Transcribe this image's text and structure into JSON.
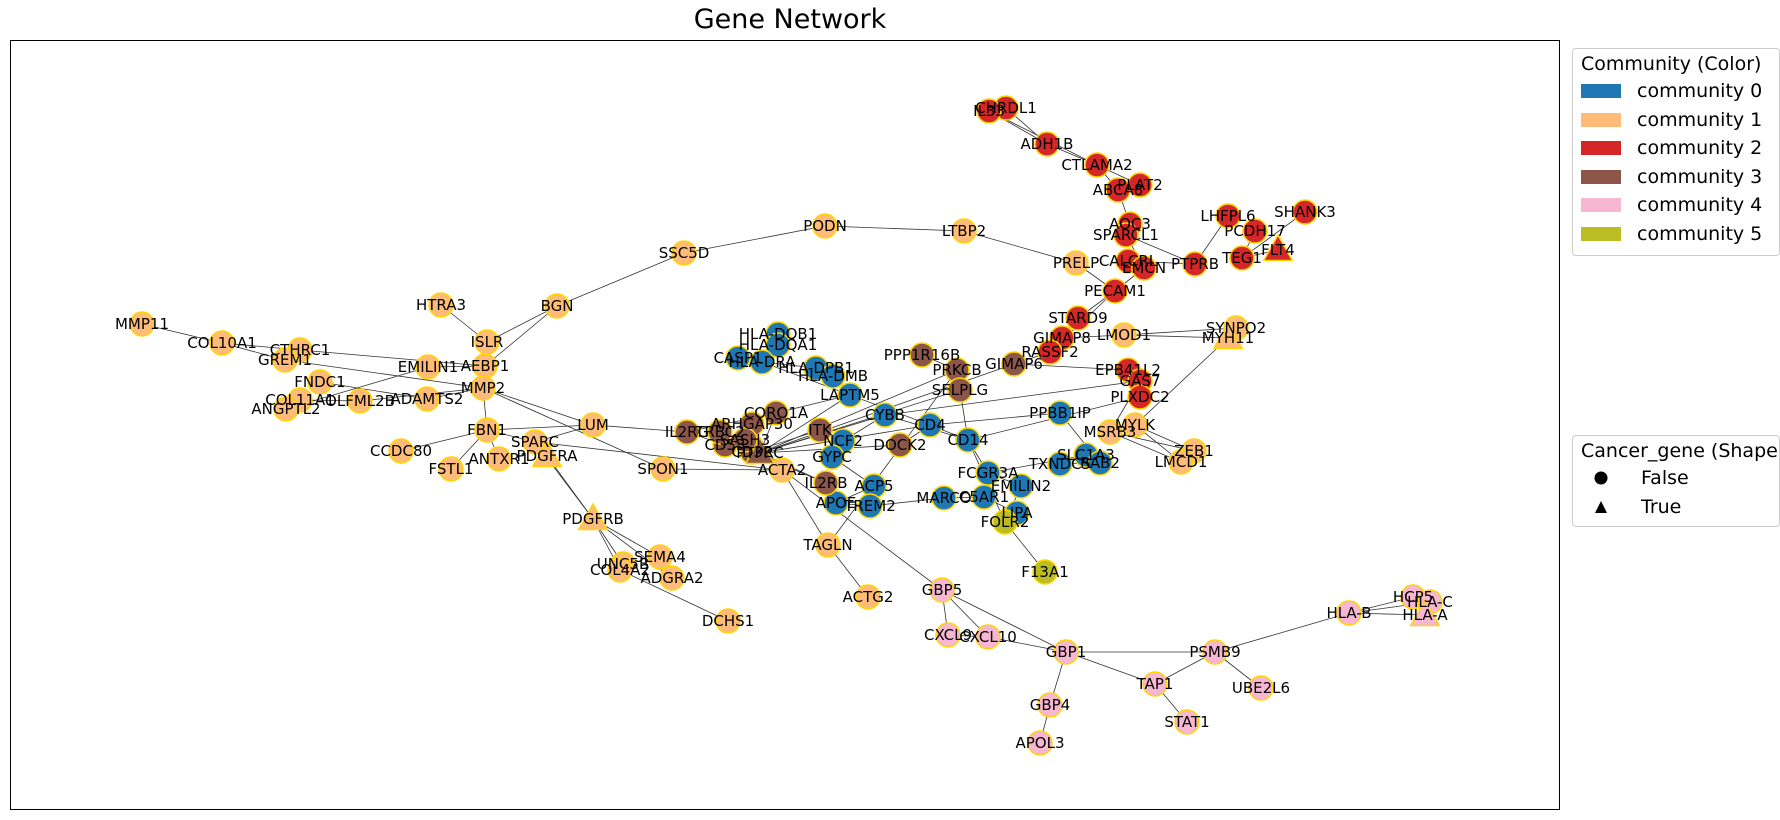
{
  "title": "Gene Network",
  "edge_color": "#333333",
  "node_border": "#ffd700",
  "communities": [
    {
      "name": "community 0",
      "color": "#1f77b4"
    },
    {
      "name": "community 1",
      "color": "#ffbb78"
    },
    {
      "name": "community 2",
      "color": "#d62728"
    },
    {
      "name": "community 3",
      "color": "#8c564b"
    },
    {
      "name": "community 4",
      "color": "#f7b6d2"
    },
    {
      "name": "community 5",
      "color": "#bcbd22"
    }
  ],
  "legend_color": {
    "title": "Community (Color)"
  },
  "legend_shape": {
    "title": "Cancer_gene (Shape",
    "items": [
      {
        "label": "False",
        "shape": "circle"
      },
      {
        "label": "True",
        "shape": "triangle"
      }
    ]
  },
  "nodes": [
    {
      "id": "MMP11",
      "c": 1,
      "s": "o"
    },
    {
      "id": "COL10A1",
      "c": 1,
      "s": "o"
    },
    {
      "id": "CTHRC1",
      "c": 1,
      "s": "o"
    },
    {
      "id": "GREM1",
      "c": 1,
      "s": "o"
    },
    {
      "id": "FNDC1",
      "c": 1,
      "s": "o"
    },
    {
      "id": "COL11A1",
      "c": 1,
      "s": "o"
    },
    {
      "id": "ANGPTL2",
      "c": 1,
      "s": "o"
    },
    {
      "id": "OLFML2B",
      "c": 1,
      "s": "o"
    },
    {
      "id": "EMILIN1",
      "c": 1,
      "s": "o"
    },
    {
      "id": "AEBP1",
      "c": 1,
      "s": "o"
    },
    {
      "id": "ADAMTS2",
      "c": 1,
      "s": "o"
    },
    {
      "id": "MMP2",
      "c": 1,
      "s": "o"
    },
    {
      "id": "HTRA3",
      "c": 1,
      "s": "o"
    },
    {
      "id": "ISLR",
      "c": 1,
      "s": "o"
    },
    {
      "id": "BGN",
      "c": 1,
      "s": "o"
    },
    {
      "id": "SSC5D",
      "c": 1,
      "s": "o"
    },
    {
      "id": "PODN",
      "c": 1,
      "s": "o"
    },
    {
      "id": "LTBP2",
      "c": 1,
      "s": "o"
    },
    {
      "id": "PRELP",
      "c": 1,
      "s": "o"
    },
    {
      "id": "FBN1",
      "c": 1,
      "s": "o"
    },
    {
      "id": "CCDC80",
      "c": 1,
      "s": "o"
    },
    {
      "id": "FSTL1",
      "c": 1,
      "s": "o"
    },
    {
      "id": "ANTXR1",
      "c": 1,
      "s": "o"
    },
    {
      "id": "SPARC",
      "c": 1,
      "s": "o"
    },
    {
      "id": "PDGFRA",
      "c": 1,
      "s": "t"
    },
    {
      "id": "LUM",
      "c": 1,
      "s": "o"
    },
    {
      "id": "SPON1",
      "c": 1,
      "s": "o"
    },
    {
      "id": "PDGFRB",
      "c": 1,
      "s": "t"
    },
    {
      "id": "UNC5B",
      "c": 1,
      "s": "o"
    },
    {
      "id": "SEMA4",
      "c": 1,
      "s": "o"
    },
    {
      "id": "COL4A2",
      "c": 1,
      "s": "o"
    },
    {
      "id": "ADGRA2",
      "c": 1,
      "s": "o"
    },
    {
      "id": "DCHS1",
      "c": 1,
      "s": "o"
    },
    {
      "id": "ACTA2",
      "c": 1,
      "s": "o"
    },
    {
      "id": "TAGLN",
      "c": 1,
      "s": "o"
    },
    {
      "id": "ACTG2",
      "c": 1,
      "s": "o"
    },
    {
      "id": "SYNPO2",
      "c": 1,
      "s": "o"
    },
    {
      "id": "MYH11",
      "c": 1,
      "s": "t"
    },
    {
      "id": "LMOD1",
      "c": 1,
      "s": "o"
    },
    {
      "id": "MYLK",
      "c": 1,
      "s": "o"
    },
    {
      "id": "MSRB3",
      "c": 1,
      "s": "o"
    },
    {
      "id": "ZEB1",
      "c": 1,
      "s": "o"
    },
    {
      "id": "LMCD1",
      "c": 1,
      "s": "o"
    },
    {
      "id": "CHRDL1",
      "c": 2,
      "s": "o"
    },
    {
      "id": "IL33",
      "c": 2,
      "s": "o"
    },
    {
      "id": "ADH1B",
      "c": 2,
      "s": "o"
    },
    {
      "id": "CTLAMA2",
      "c": 2,
      "s": "o"
    },
    {
      "id": "PLAT2",
      "c": 2,
      "s": "o"
    },
    {
      "id": "ABCA8",
      "c": 2,
      "s": "o"
    },
    {
      "id": "AOC3",
      "c": 2,
      "s": "o"
    },
    {
      "id": "SPARCL1",
      "c": 2,
      "s": "o"
    },
    {
      "id": "LHFPL6",
      "c": 2,
      "s": "o"
    },
    {
      "id": "PCDH17",
      "c": 2,
      "s": "o"
    },
    {
      "id": "SHANK3",
      "c": 2,
      "s": "o"
    },
    {
      "id": "FLT4",
      "c": 2,
      "s": "t"
    },
    {
      "id": "TEG1",
      "c": 2,
      "s": "o"
    },
    {
      "id": "PTPRB",
      "c": 2,
      "s": "o"
    },
    {
      "id": "CALCRL",
      "c": 2,
      "s": "o"
    },
    {
      "id": "EMCN",
      "c": 2,
      "s": "o"
    },
    {
      "id": "PECAM1",
      "c": 2,
      "s": "o"
    },
    {
      "id": "STARD9",
      "c": 2,
      "s": "o"
    },
    {
      "id": "GIMAP8",
      "c": 2,
      "s": "o"
    },
    {
      "id": "RASSF2",
      "c": 2,
      "s": "o"
    },
    {
      "id": "EPB41L2",
      "c": 2,
      "s": "o"
    },
    {
      "id": "GAS7",
      "c": 2,
      "s": "o"
    },
    {
      "id": "PLXDC2",
      "c": 2,
      "s": "o"
    },
    {
      "id": "HLA-DQB1",
      "c": 0,
      "s": "o"
    },
    {
      "id": "HLA-DQA1",
      "c": 0,
      "s": "o"
    },
    {
      "id": "CASP1",
      "c": 0,
      "s": "o"
    },
    {
      "id": "HLA-DRA",
      "c": 0,
      "s": "o"
    },
    {
      "id": "HLA-DPB1",
      "c": 0,
      "s": "o"
    },
    {
      "id": "HLA-DMB",
      "c": 0,
      "s": "o"
    },
    {
      "id": "NCF2",
      "c": 0,
      "s": "o"
    },
    {
      "id": "GYPC",
      "c": 0,
      "s": "o"
    },
    {
      "id": "ACP5",
      "c": 0,
      "s": "o"
    },
    {
      "id": "APOE",
      "c": 0,
      "s": "o"
    },
    {
      "id": "TREM2",
      "c": 0,
      "s": "o"
    },
    {
      "id": "MARCO",
      "c": 0,
      "s": "o"
    },
    {
      "id": "C5AR1",
      "c": 0,
      "s": "o"
    },
    {
      "id": "LIPA",
      "c": 0,
      "s": "o"
    },
    {
      "id": "FCGR3A",
      "c": 0,
      "s": "o"
    },
    {
      "id": "EMILIN2",
      "c": 0,
      "s": "o"
    },
    {
      "id": "SLC1A3",
      "c": 0,
      "s": "o"
    },
    {
      "id": "TXNDC5",
      "c": 0,
      "s": "o"
    },
    {
      "id": "RAB2",
      "c": 0,
      "s": "o"
    },
    {
      "id": "PPBB1IP",
      "c": 0,
      "s": "o"
    },
    {
      "id": "LAPTM5",
      "c": 0,
      "s": "o"
    },
    {
      "id": "CD4",
      "c": 0,
      "s": "o"
    },
    {
      "id": "CD14",
      "c": 0,
      "s": "o"
    },
    {
      "id": "CYBB",
      "c": 0,
      "s": "o"
    },
    {
      "id": "PPP1R16B",
      "c": 3,
      "s": "o"
    },
    {
      "id": "PRKCB",
      "c": 3,
      "s": "o"
    },
    {
      "id": "IL2RG",
      "c": 3,
      "s": "o"
    },
    {
      "id": "CD53",
      "c": 3,
      "s": "o"
    },
    {
      "id": "CD3E",
      "c": 3,
      "s": "o"
    },
    {
      "id": "IL2RB",
      "c": 3,
      "s": "o"
    },
    {
      "id": "CORO1A",
      "c": 3,
      "s": "o"
    },
    {
      "id": "ARHGAP30",
      "c": 3,
      "s": "o"
    },
    {
      "id": "TRBC2",
      "c": 3,
      "s": "o"
    },
    {
      "id": "SASH3",
      "c": 3,
      "s": "o"
    },
    {
      "id": "PTPRC",
      "c": 3,
      "s": "t"
    },
    {
      "id": "GIMAP6",
      "c": 3,
      "s": "o"
    },
    {
      "id": "SELPLG",
      "c": 3,
      "s": "o"
    },
    {
      "id": "DOCK2",
      "c": 3,
      "s": "o"
    },
    {
      "id": "ITK",
      "c": 3,
      "s": "o"
    },
    {
      "id": "CXCL9",
      "c": 4,
      "s": "o"
    },
    {
      "id": "CXCL10",
      "c": 4,
      "s": "o"
    },
    {
      "id": "GBP5",
      "c": 4,
      "s": "o"
    },
    {
      "id": "GBP1",
      "c": 4,
      "s": "o"
    },
    {
      "id": "GBP4",
      "c": 4,
      "s": "o"
    },
    {
      "id": "APOL3",
      "c": 4,
      "s": "o"
    },
    {
      "id": "TAP1",
      "c": 4,
      "s": "o"
    },
    {
      "id": "STAT1",
      "c": 4,
      "s": "o"
    },
    {
      "id": "PSMB9",
      "c": 4,
      "s": "o"
    },
    {
      "id": "UBE2L6",
      "c": 4,
      "s": "o"
    },
    {
      "id": "HLA-B",
      "c": 4,
      "s": "o"
    },
    {
      "id": "HCP5",
      "c": 4,
      "s": "o"
    },
    {
      "id": "HLA-C",
      "c": 4,
      "s": "o"
    },
    {
      "id": "HLA-A",
      "c": 4,
      "s": "t"
    },
    {
      "id": "FOLR2",
      "c": 5,
      "s": "o"
    },
    {
      "id": "F13A1",
      "c": 5,
      "s": "o"
    }
  ],
  "edges": [
    [
      "MMP11",
      "COL10A1"
    ],
    [
      "COL10A1",
      "CTHRC1"
    ],
    [
      "COL10A1",
      "GREM1"
    ],
    [
      "CTHRC1",
      "AEBP1"
    ],
    [
      "GREM1",
      "MMP2"
    ],
    [
      "FNDC1",
      "ADAMTS2"
    ],
    [
      "COL11A1",
      "OLFML2B"
    ],
    [
      "ANGPTL2",
      "EMILIN1"
    ],
    [
      "OLFML2B",
      "MMP2"
    ],
    [
      "EMILIN1",
      "AEBP1"
    ],
    [
      "AEBP1",
      "ISLR"
    ],
    [
      "AEBP1",
      "MMP2"
    ],
    [
      "ADAMTS2",
      "MMP2"
    ],
    [
      "HTRA3",
      "ISLR"
    ],
    [
      "ISLR",
      "BGN"
    ],
    [
      "AEBP1",
      "BGN"
    ],
    [
      "BGN",
      "SSC5D"
    ],
    [
      "SSC5D",
      "PODN"
    ],
    [
      "PODN",
      "LTBP2"
    ],
    [
      "LTBP2",
      "PRELP"
    ],
    [
      "PRELP",
      "PECAM1"
    ],
    [
      "MMP2",
      "FBN1"
    ],
    [
      "FBN1",
      "LUM"
    ],
    [
      "FBN1",
      "SPARC"
    ],
    [
      "FBN1",
      "ANTXR1"
    ],
    [
      "CCDC80",
      "FBN1"
    ],
    [
      "FSTL1",
      "FBN1"
    ],
    [
      "SPARC",
      "PDGFRA"
    ],
    [
      "SPARC",
      "LUM"
    ],
    [
      "LUM",
      "MMP2"
    ],
    [
      "LUM",
      "IL2RG"
    ],
    [
      "SPARC",
      "ACTA2"
    ],
    [
      "SPON1",
      "MMP2"
    ],
    [
      "SPON1",
      "ACTA2"
    ],
    [
      "PDGFRA",
      "PDGFRB"
    ],
    [
      "SPARC",
      "PDGFRB"
    ],
    [
      "PDGFRB",
      "UNC5B"
    ],
    [
      "PDGFRB",
      "SEMA4"
    ],
    [
      "PDGFRB",
      "COL4A2"
    ],
    [
      "PDGFRB",
      "ADGRA2"
    ],
    [
      "COL4A2",
      "DCHS1"
    ],
    [
      "ADGRA2",
      "SEMA4"
    ],
    [
      "ACTA2",
      "TAGLN"
    ],
    [
      "TAGLN",
      "ACTG2"
    ],
    [
      "ACTA2",
      "PTPRC"
    ],
    [
      "TAGLN",
      "PRKCB"
    ],
    [
      "SYNPO2",
      "MYH11"
    ],
    [
      "MYH11",
      "LMOD1"
    ],
    [
      "LMOD1",
      "SYNPO2"
    ],
    [
      "LMOD1",
      "GIMAP8"
    ],
    [
      "MYLK",
      "ZEB1"
    ],
    [
      "MYLK",
      "LMCD1"
    ],
    [
      "MSRB3",
      "ZEB1"
    ],
    [
      "MSRB3",
      "LMCD1"
    ],
    [
      "MYLK",
      "MYH11"
    ],
    [
      "EPB41L2",
      "PLXDC2"
    ],
    [
      "GAS7",
      "MSRB3"
    ],
    [
      "CHRDL1",
      "ADH1B"
    ],
    [
      "IL33",
      "ADH1B"
    ],
    [
      "IL33",
      "CTLAMA2"
    ],
    [
      "ADH1B",
      "CTLAMA2"
    ],
    [
      "CTLAMA2",
      "PLAT2"
    ],
    [
      "CTLAMA2",
      "ABCA8"
    ],
    [
      "ABCA8",
      "AOC3"
    ],
    [
      "AOC3",
      "SPARCL1"
    ],
    [
      "SPARCL1",
      "EMCN"
    ],
    [
      "SPARCL1",
      "PTPRB"
    ],
    [
      "LHFPL6",
      "PTPRB"
    ],
    [
      "PCDH17",
      "TEG1"
    ],
    [
      "SHANK3",
      "TEG1"
    ],
    [
      "FLT4",
      "TEG1"
    ],
    [
      "PTPRB",
      "CALCRL"
    ],
    [
      "CALCRL",
      "EMCN"
    ],
    [
      "EMCN",
      "PECAM1"
    ],
    [
      "PECAM1",
      "STARD9"
    ],
    [
      "STARD9",
      "GIMAP8"
    ],
    [
      "GIMAP8",
      "RASSF2"
    ],
    [
      "RASSF2",
      "GIMAP6"
    ],
    [
      "PECAM1",
      "RASSF2"
    ],
    [
      "EPB41L2",
      "GIMAP6"
    ],
    [
      "GAS7",
      "CYBB"
    ],
    [
      "PLXDC2",
      "CD14"
    ],
    [
      "HLA-DQB1",
      "HLA-DQA1"
    ],
    [
      "HLA-DQA1",
      "HLA-DRA"
    ],
    [
      "CASP1",
      "HLA-DRA"
    ],
    [
      "HLA-DRA",
      "HLA-DPB1"
    ],
    [
      "HLA-DPB1",
      "HLA-DMB"
    ],
    [
      "HLA-DMB",
      "LAPTM5"
    ],
    [
      "HLA-DRA",
      "LAPTM5"
    ],
    [
      "LAPTM5",
      "CD4"
    ],
    [
      "CD4",
      "CD14"
    ],
    [
      "CD14",
      "CYBB"
    ],
    [
      "CYBB",
      "NCF2"
    ],
    [
      "NCF2",
      "GYPC"
    ],
    [
      "GYPC",
      "ACP5"
    ],
    [
      "ACP5",
      "APOE"
    ],
    [
      "APOE",
      "TREM2"
    ],
    [
      "TREM2",
      "MARCO"
    ],
    [
      "MARCO",
      "C5AR1"
    ],
    [
      "C5AR1",
      "LIPA"
    ],
    [
      "C5AR1",
      "FCGR3A"
    ],
    [
      "FCGR3A",
      "EMILIN2"
    ],
    [
      "FCGR3A",
      "SLC1A3"
    ],
    [
      "SLC1A3",
      "TXNDC5"
    ],
    [
      "TXNDC5",
      "RAB2"
    ],
    [
      "RAB2",
      "PPBB1IP"
    ],
    [
      "PPBB1IP",
      "CD4"
    ],
    [
      "LAPTM5",
      "PTPRC"
    ],
    [
      "CD4",
      "PTPRC"
    ],
    [
      "CYBB",
      "PTPRC"
    ],
    [
      "CD14",
      "FCGR3A"
    ],
    [
      "LIPA",
      "FOLR2"
    ],
    [
      "FOLR2",
      "F13A1"
    ],
    [
      "FOLR2",
      "CD14"
    ],
    [
      "FOLR2",
      "EMILIN2"
    ],
    [
      "PPP1R16B",
      "PRKCB"
    ],
    [
      "PRKCB",
      "PTPRC"
    ],
    [
      "IL2RG",
      "CD53"
    ],
    [
      "CD53",
      "CD3E"
    ],
    [
      "CD3E",
      "IL2RB"
    ],
    [
      "IL2RB",
      "PTPRC"
    ],
    [
      "CORO1A",
      "PTPRC"
    ],
    [
      "ARHGAP30",
      "PTPRC"
    ],
    [
      "TRBC2",
      "CD3E"
    ],
    [
      "SASH3",
      "PTPRC"
    ],
    [
      "GIMAP6",
      "PTPRC"
    ],
    [
      "SELPLG",
      "PTPRC"
    ],
    [
      "DOCK2",
      "PTPRC"
    ],
    [
      "ITK",
      "CD3E"
    ],
    [
      "CORO1A",
      "LAPTM5"
    ],
    [
      "SASH3",
      "CD53"
    ],
    [
      "IL2RG",
      "CORO1A"
    ],
    [
      "DOCK2",
      "CD4"
    ],
    [
      "SELPLG",
      "CD14"
    ],
    [
      "PTPRC",
      "GBP5"
    ],
    [
      "GBP5",
      "CXCL9"
    ],
    [
      "GBP5",
      "CXCL10"
    ],
    [
      "CXCL9",
      "CXCL10"
    ],
    [
      "GBP5",
      "GBP1"
    ],
    [
      "CXCL10",
      "GBP1"
    ],
    [
      "GBP1",
      "GBP4"
    ],
    [
      "GBP4",
      "APOL3"
    ],
    [
      "GBP1",
      "PSMB9"
    ],
    [
      "GBP1",
      "TAP1"
    ],
    [
      "TAP1",
      "PSMB9"
    ],
    [
      "TAP1",
      "STAT1"
    ],
    [
      "PSMB9",
      "UBE2L6"
    ],
    [
      "PSMB9",
      "HLA-B"
    ],
    [
      "HLA-B",
      "HCP5"
    ],
    [
      "HLA-B",
      "HLA-C"
    ],
    [
      "HLA-B",
      "HLA-A"
    ],
    [
      "HCP5",
      "HLA-A"
    ],
    [
      "HLA-C",
      "HLA-A"
    ],
    [
      "HCP5",
      "HLA-C"
    ]
  ]
}
